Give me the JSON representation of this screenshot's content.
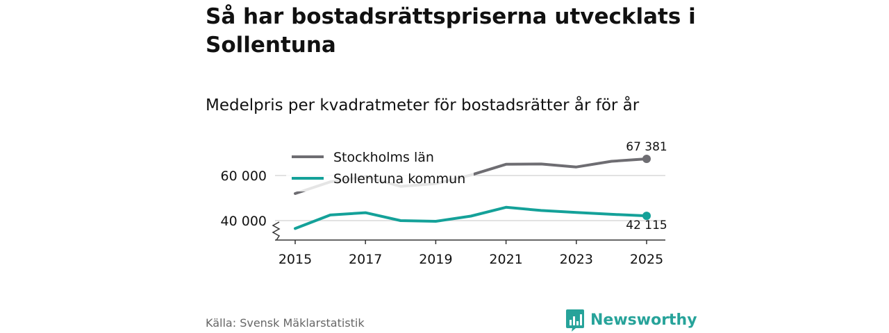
{
  "title": "Så har bostadsrättspriserna utvecklats i Sollentuna",
  "subtitle": "Medelpris per kvadratmeter för bostadsrätter år för år",
  "source": "Källa: Svensk Mäklarstatistik",
  "brand": "Newsworthy",
  "colors": {
    "stockholm": "#6e6d72",
    "sollentuna": "#14a199",
    "grid": "#d9d9d9",
    "brand": "#27a39a"
  },
  "chart_data": {
    "type": "line",
    "x": [
      2015,
      2016,
      2017,
      2018,
      2019,
      2020,
      2021,
      2022,
      2023,
      2024,
      2025
    ],
    "xticks": [
      2015,
      2017,
      2019,
      2021,
      2023,
      2025
    ],
    "xtick_labels": [
      "2015",
      "2017",
      "2019",
      "2021",
      "2023",
      "2025"
    ],
    "yticks": [
      40000,
      60000
    ],
    "ytick_labels": [
      "40 000",
      "60 000"
    ],
    "ylim": [
      32000,
      70000
    ],
    "y_axis_break": true,
    "legend_position": "top-left",
    "series": [
      {
        "name": "Stockholms län",
        "color": "#6e6d72",
        "values": [
          52000,
          57200,
          59500,
          55200,
          56400,
          60200,
          65000,
          65100,
          63800,
          66300,
          67381
        ],
        "end_label": "67 381",
        "end_label_position": "above"
      },
      {
        "name": "Sollentuna kommun",
        "color": "#14a199",
        "values": [
          36500,
          42500,
          43500,
          40000,
          39700,
          42000,
          45900,
          44500,
          43600,
          42800,
          42115
        ],
        "end_label": "42 115",
        "end_label_position": "below"
      }
    ]
  }
}
